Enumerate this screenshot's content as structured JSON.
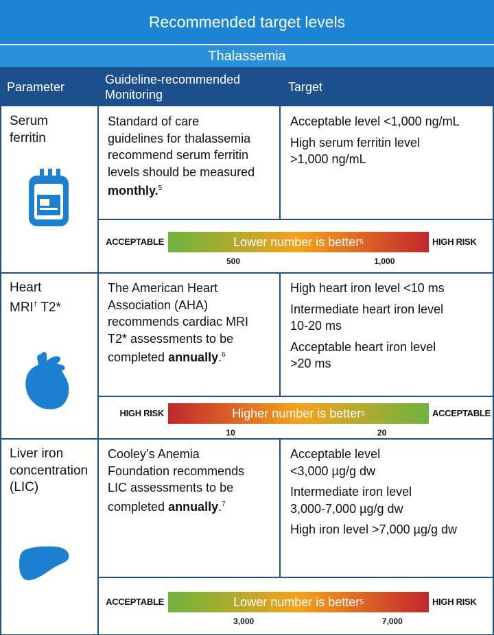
{
  "header": {
    "title": "Recommended target levels",
    "subtitle": "Thalassemia"
  },
  "columns": [
    "Parameter",
    "Guideline-recommended Monitoring",
    "Target"
  ],
  "rows": [
    {
      "parameter": [
        "Serum",
        "ferritin"
      ],
      "monitoring": [
        "Standard of care",
        "guidelines for thalassemia",
        "recommend serum ferritin",
        "levels should be measured",
        [
          {
            "text": "monthly.",
            "style": "bold"
          },
          {
            "text": "5",
            "style": "sup"
          }
        ]
      ],
      "targets": [
        [
          "Acceptable level <1,000 ng/mL"
        ],
        [
          "High serum ferritin level",
          ">1,000 ng/mL"
        ]
      ],
      "scale": {
        "left": "ACCEPTABLE",
        "caption": "Lower number is better",
        "ref": "5",
        "right": "HIGH RISK",
        "ticks": [
          "500",
          "1,000"
        ],
        "colors": [
          "#6db33f",
          "#f5a21c",
          "#c1272d"
        ]
      }
    },
    {
      "parameter": [
        "Heart",
        [
          {
            "text": "MRI"
          },
          {
            "text": "†",
            "style": "sup"
          },
          {
            "text": " T2*"
          }
        ]
      ],
      "monitoring": [
        "The American Heart",
        "Association (AHA)",
        "recommends cardiac MRI",
        "T2* assessments to be",
        [
          {
            "text": "completed "
          },
          {
            "text": "annually",
            "style": "bold"
          },
          {
            "text": "."
          },
          {
            "text": "6",
            "style": "sup"
          }
        ]
      ],
      "targets": [
        [
          "High heart iron level <10 ms"
        ],
        [
          "Intermediate heart iron level",
          "10-20 ms"
        ],
        [
          "Acceptable heart iron level",
          ">20 ms"
        ]
      ],
      "scale": {
        "left": "HIGH RISK",
        "caption": "Higher number is better",
        "ref": "5",
        "right": "ACCEPTABLE",
        "ticks": [
          "10",
          "20"
        ],
        "colors": [
          "#c1272d",
          "#f5a21c",
          "#6db33f"
        ]
      }
    },
    {
      "parameter": [
        "Liver iron",
        "concentration",
        "(LIC)"
      ],
      "monitoring": [
        "Cooley’s Anemia",
        "Foundation recommends",
        "LIC assessments to be",
        [
          {
            "text": "completed "
          },
          {
            "text": "annually",
            "style": "bold"
          },
          {
            "text": "."
          },
          {
            "text": "7",
            "style": "sup"
          }
        ]
      ],
      "targets": [
        [
          "Acceptable level",
          "<3,000 µg/g dw"
        ],
        [
          "Intermediate iron level",
          "3,000-7,000 µg/g dw"
        ],
        [
          "High iron level >7,000 µg/g dw"
        ]
      ],
      "scale": {
        "left": "ACCEPTABLE",
        "caption": "Lower number is better",
        "ref": "5",
        "right": "HIGH RISK",
        "ticks": [
          "3,000",
          "7,000"
        ],
        "colors": [
          "#6db33f",
          "#f5a21c",
          "#c1272d"
        ]
      }
    }
  ]
}
